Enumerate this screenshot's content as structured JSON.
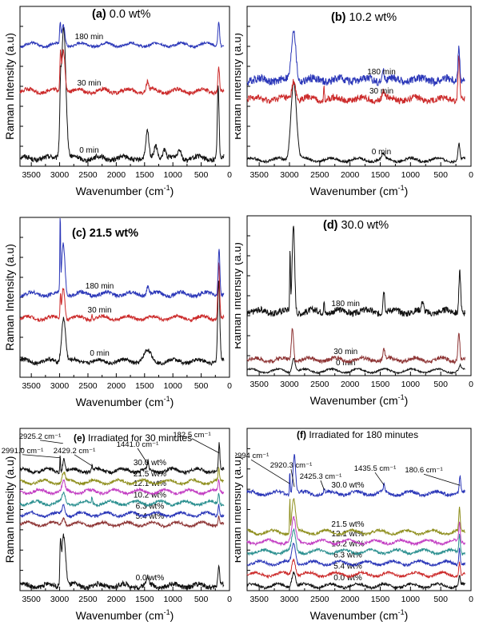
{
  "figure": {
    "ylabel": "Raman Intensity (a.u)",
    "xlabel_main": "Wavenumber (cm",
    "xlabel_sup": "-1",
    "xlabel_end": ")"
  },
  "colors": {
    "black": "#111111",
    "red": "#cc2a2a",
    "blue": "#2a36b8",
    "maroon": "#8e3535",
    "olive": "#8f8f1e",
    "magenta": "#c23cc2",
    "teal": "#2a8f8f"
  },
  "chart_data": [
    {
      "id": "a",
      "type": "line",
      "title": "(a) 0.0 wt%",
      "xlabel": "Wavenumber (cm-1)",
      "ylabel": "Raman Intensity (a.u)",
      "xlim": [
        3700,
        0
      ],
      "xticks": [
        3500,
        3000,
        2500,
        2000,
        1500,
        1000,
        500,
        0
      ],
      "series": [
        {
          "name": "0 min",
          "color": "black",
          "offset": 0.05,
          "noise": 0.015,
          "peaks": [
            [
              2930,
              0.82,
              40
            ],
            [
              2985,
              0.22,
              12
            ],
            [
              1450,
              0.16,
              25
            ],
            [
              1300,
              0.08,
              30
            ],
            [
              1150,
              0.06,
              30
            ],
            [
              880,
              0.06,
              30
            ],
            [
              200,
              0.45,
              15
            ]
          ]
        },
        {
          "name": "30 min",
          "color": "red",
          "offset": 0.47,
          "noise": 0.012,
          "peaks": [
            [
              2935,
              0.26,
              30
            ],
            [
              2985,
              0.2,
              10
            ],
            [
              1450,
              0.06,
              20
            ],
            [
              190,
              0.15,
              15
            ]
          ]
        },
        {
          "name": "180 min",
          "color": "blue",
          "offset": 0.76,
          "noise": 0.008,
          "peaks": [
            [
              2935,
              0.12,
              28
            ],
            [
              2990,
              0.12,
              10
            ],
            [
              190,
              0.16,
              15
            ]
          ]
        }
      ]
    },
    {
      "id": "b",
      "type": "line",
      "title": "(b) 10.2 wt%",
      "xlabel": "Wavenumber (cm-1)",
      "ylabel": "Raman Intensity (a.u)",
      "xlim": [
        3700,
        0
      ],
      "xticks": [
        3500,
        3000,
        2500,
        2000,
        1500,
        1000,
        500,
        0
      ],
      "series": [
        {
          "name": "0 min",
          "color": "black",
          "offset": 0.04,
          "noise": 0.008,
          "peaks": [
            [
              2930,
              0.5,
              45
            ],
            [
              1450,
              0.03,
              25
            ],
            [
              200,
              0.1,
              15
            ]
          ]
        },
        {
          "name": "30 min",
          "color": "red",
          "offset": 0.42,
          "noise": 0.02,
          "peaks": [
            [
              2930,
              0.12,
              30
            ],
            [
              2429,
              0.08,
              8
            ],
            [
              1450,
              0.05,
              20
            ],
            [
              200,
              0.28,
              15
            ]
          ]
        },
        {
          "name": "180 min",
          "color": "blue",
          "offset": 0.54,
          "noise": 0.025,
          "peaks": [
            [
              2930,
              0.32,
              35
            ],
            [
              1450,
              0.06,
              20
            ],
            [
              200,
              0.22,
              15
            ]
          ]
        }
      ]
    },
    {
      "id": "c",
      "type": "line",
      "title": "(c) 21.5 wt%",
      "xlabel": "Wavenumber (cm-1)",
      "ylabel": "Raman Intensity (a.u)",
      "xlim": [
        3700,
        0
      ],
      "xticks": [
        3500,
        3000,
        2500,
        2000,
        1500,
        1000,
        500,
        0
      ],
      "series": [
        {
          "name": "0 min",
          "color": "black",
          "offset": 0.1,
          "noise": 0.012,
          "peaks": [
            [
              2930,
              0.28,
              35
            ],
            [
              1450,
              0.06,
              60
            ],
            [
              190,
              0.5,
              18
            ]
          ]
        },
        {
          "name": "30 min",
          "color": "red",
          "offset": 0.37,
          "noise": 0.01,
          "peaks": [
            [
              2935,
              0.2,
              25
            ],
            [
              2985,
              0.14,
              8
            ],
            [
              2429,
              0.04,
              8
            ],
            [
              190,
              0.35,
              15
            ]
          ]
        },
        {
          "name": "180 min",
          "color": "blue",
          "offset": 0.52,
          "noise": 0.012,
          "peaks": [
            [
              2935,
              0.32,
              28
            ],
            [
              2990,
              0.48,
              6
            ],
            [
              1440,
              0.06,
              20
            ],
            [
              185,
              0.3,
              15
            ]
          ]
        }
      ]
    },
    {
      "id": "d",
      "type": "line",
      "title": "(d) 30.0  wt%",
      "xlabel": "Wavenumber (cm-1)",
      "ylabel": "Raman Intensity (a.u)",
      "xlim": [
        3700,
        0
      ],
      "xticks": [
        3500,
        3000,
        2500,
        2000,
        1500,
        1000,
        500,
        0
      ],
      "series": [
        {
          "name": "0 min",
          "color": "black",
          "offset": 0.03,
          "noise": 0.005,
          "peaks": [
            [
              2930,
              0.09,
              25
            ],
            [
              180,
              0.03,
              15
            ]
          ]
        },
        {
          "name": "30 min",
          "color": "maroon",
          "offset": 0.1,
          "noise": 0.012,
          "peaks": [
            [
              2950,
              0.21,
              18
            ],
            [
              1440,
              0.06,
              15
            ],
            [
              200,
              0.18,
              15
            ]
          ]
        },
        {
          "name": "180 min",
          "color": "black",
          "offset": 0.4,
          "noise": 0.02,
          "peaks": [
            [
              2935,
              0.55,
              20
            ],
            [
              2990,
              0.4,
              6
            ],
            [
              2429,
              0.08,
              8
            ],
            [
              1440,
              0.14,
              15
            ],
            [
              800,
              0.06,
              15
            ],
            [
              185,
              0.26,
              15
            ]
          ]
        }
      ]
    },
    {
      "id": "e",
      "type": "line",
      "title": "(e) Irradiated for 30 minutes",
      "xlabel": "Wavenumber (cm-1)",
      "ylabel": "Raman Intensity (a.u)",
      "xlim": [
        3700,
        0
      ],
      "xticks": [
        3500,
        3000,
        2500,
        2000,
        1500,
        1000,
        500,
        0
      ],
      "peak_labels": [
        "2925.2 cm⁻¹",
        "2991.0 cm⁻¹",
        "2429.2 cm⁻¹",
        "1441.0 cm⁻¹",
        "182.5 cm⁻¹"
      ],
      "series": [
        {
          "name": "0.0 wt%",
          "color": "black",
          "offset": 0.03,
          "noise": 0.015,
          "peaks": [
            [
              2930,
              0.32,
              35
            ],
            [
              2985,
              0.22,
              10
            ],
            [
              1450,
              0.05,
              20
            ],
            [
              190,
              0.12,
              15
            ]
          ]
        },
        {
          "name": "5.4 wt%",
          "color": "maroon",
          "offset": 0.41,
          "noise": 0.008,
          "peaks": [
            [
              2930,
              0.05,
              25
            ],
            [
              190,
              0.06,
              12
            ]
          ]
        },
        {
          "name": "6.3 wt%",
          "color": "blue",
          "offset": 0.47,
          "noise": 0.008,
          "peaks": [
            [
              2930,
              0.06,
              25
            ],
            [
              190,
              0.07,
              12
            ]
          ]
        },
        {
          "name": "10.2 wt%",
          "color": "teal",
          "offset": 0.54,
          "noise": 0.008,
          "peaks": [
            [
              2930,
              0.06,
              25
            ],
            [
              2429,
              0.04,
              8
            ],
            [
              190,
              0.07,
              12
            ]
          ]
        },
        {
          "name": "12.1 wt%",
          "color": "magenta",
          "offset": 0.61,
          "noise": 0.008,
          "peaks": [
            [
              2930,
              0.06,
              25
            ],
            [
              190,
              0.07,
              12
            ]
          ]
        },
        {
          "name": "21.5 wt%",
          "color": "olive",
          "offset": 0.67,
          "noise": 0.008,
          "peaks": [
            [
              2930,
              0.06,
              25
            ],
            [
              190,
              0.07,
              12
            ]
          ]
        },
        {
          "name": "30.0 wt%",
          "color": "black",
          "offset": 0.74,
          "noise": 0.01,
          "peaks": [
            [
              2925,
              0.08,
              20
            ],
            [
              2991,
              0.1,
              6
            ],
            [
              2429,
              0.03,
              8
            ],
            [
              1441,
              0.05,
              12
            ],
            [
              182,
              0.16,
              12
            ]
          ]
        }
      ]
    },
    {
      "id": "f",
      "type": "line",
      "title": "(f) Irradiated for 180 minutes",
      "xlabel": "Wavenumber (cm-1)",
      "ylabel": "Raman Intensity (a.u)",
      "xlim": [
        3700,
        0
      ],
      "xticks": [
        3500,
        3000,
        2500,
        2000,
        1500,
        1000,
        500,
        0
      ],
      "peak_labels": [
        "2994 cm⁻¹",
        "2920.3 cm⁻¹",
        "2425.3 cm⁻¹",
        "1435.5 cm⁻¹",
        "180.6 cm⁻¹"
      ],
      "series": [
        {
          "name": "0.0 wt%",
          "color": "black",
          "offset": 0.03,
          "noise": 0.008,
          "peaks": [
            [
              2930,
              0.09,
              30
            ],
            [
              190,
              0.06,
              12
            ]
          ]
        },
        {
          "name": "5.4 wt%",
          "color": "red",
          "offset": 0.1,
          "noise": 0.008,
          "peaks": [
            [
              2930,
              0.1,
              30
            ],
            [
              190,
              0.08,
              12
            ]
          ]
        },
        {
          "name": "6.3 wt%",
          "color": "blue",
          "offset": 0.17,
          "noise": 0.008,
          "peaks": [
            [
              2930,
              0.12,
              30
            ],
            [
              190,
              0.1,
              12
            ]
          ]
        },
        {
          "name": "10.2 wt%",
          "color": "teal",
          "offset": 0.24,
          "noise": 0.008,
          "peaks": [
            [
              2930,
              0.13,
              30
            ],
            [
              190,
              0.11,
              12
            ]
          ]
        },
        {
          "name": "12.1 wt%",
          "color": "magenta",
          "offset": 0.3,
          "noise": 0.008,
          "peaks": [
            [
              2930,
              0.14,
              30
            ],
            [
              190,
              0.12,
              12
            ]
          ]
        },
        {
          "name": "21.5 wt%",
          "color": "olive",
          "offset": 0.36,
          "noise": 0.008,
          "peaks": [
            [
              2930,
              0.2,
              30
            ],
            [
              2994,
              0.2,
              5
            ],
            [
              190,
              0.14,
              12
            ]
          ]
        },
        {
          "name": "30.0 wt%",
          "color": "blue",
          "offset": 0.6,
          "noise": 0.01,
          "peaks": [
            [
              2920,
              0.24,
              22
            ],
            [
              2994,
              0.15,
              6
            ],
            [
              2425,
              0.03,
              8
            ],
            [
              1435,
              0.05,
              12
            ],
            [
              181,
              0.1,
              12
            ]
          ]
        }
      ]
    }
  ]
}
